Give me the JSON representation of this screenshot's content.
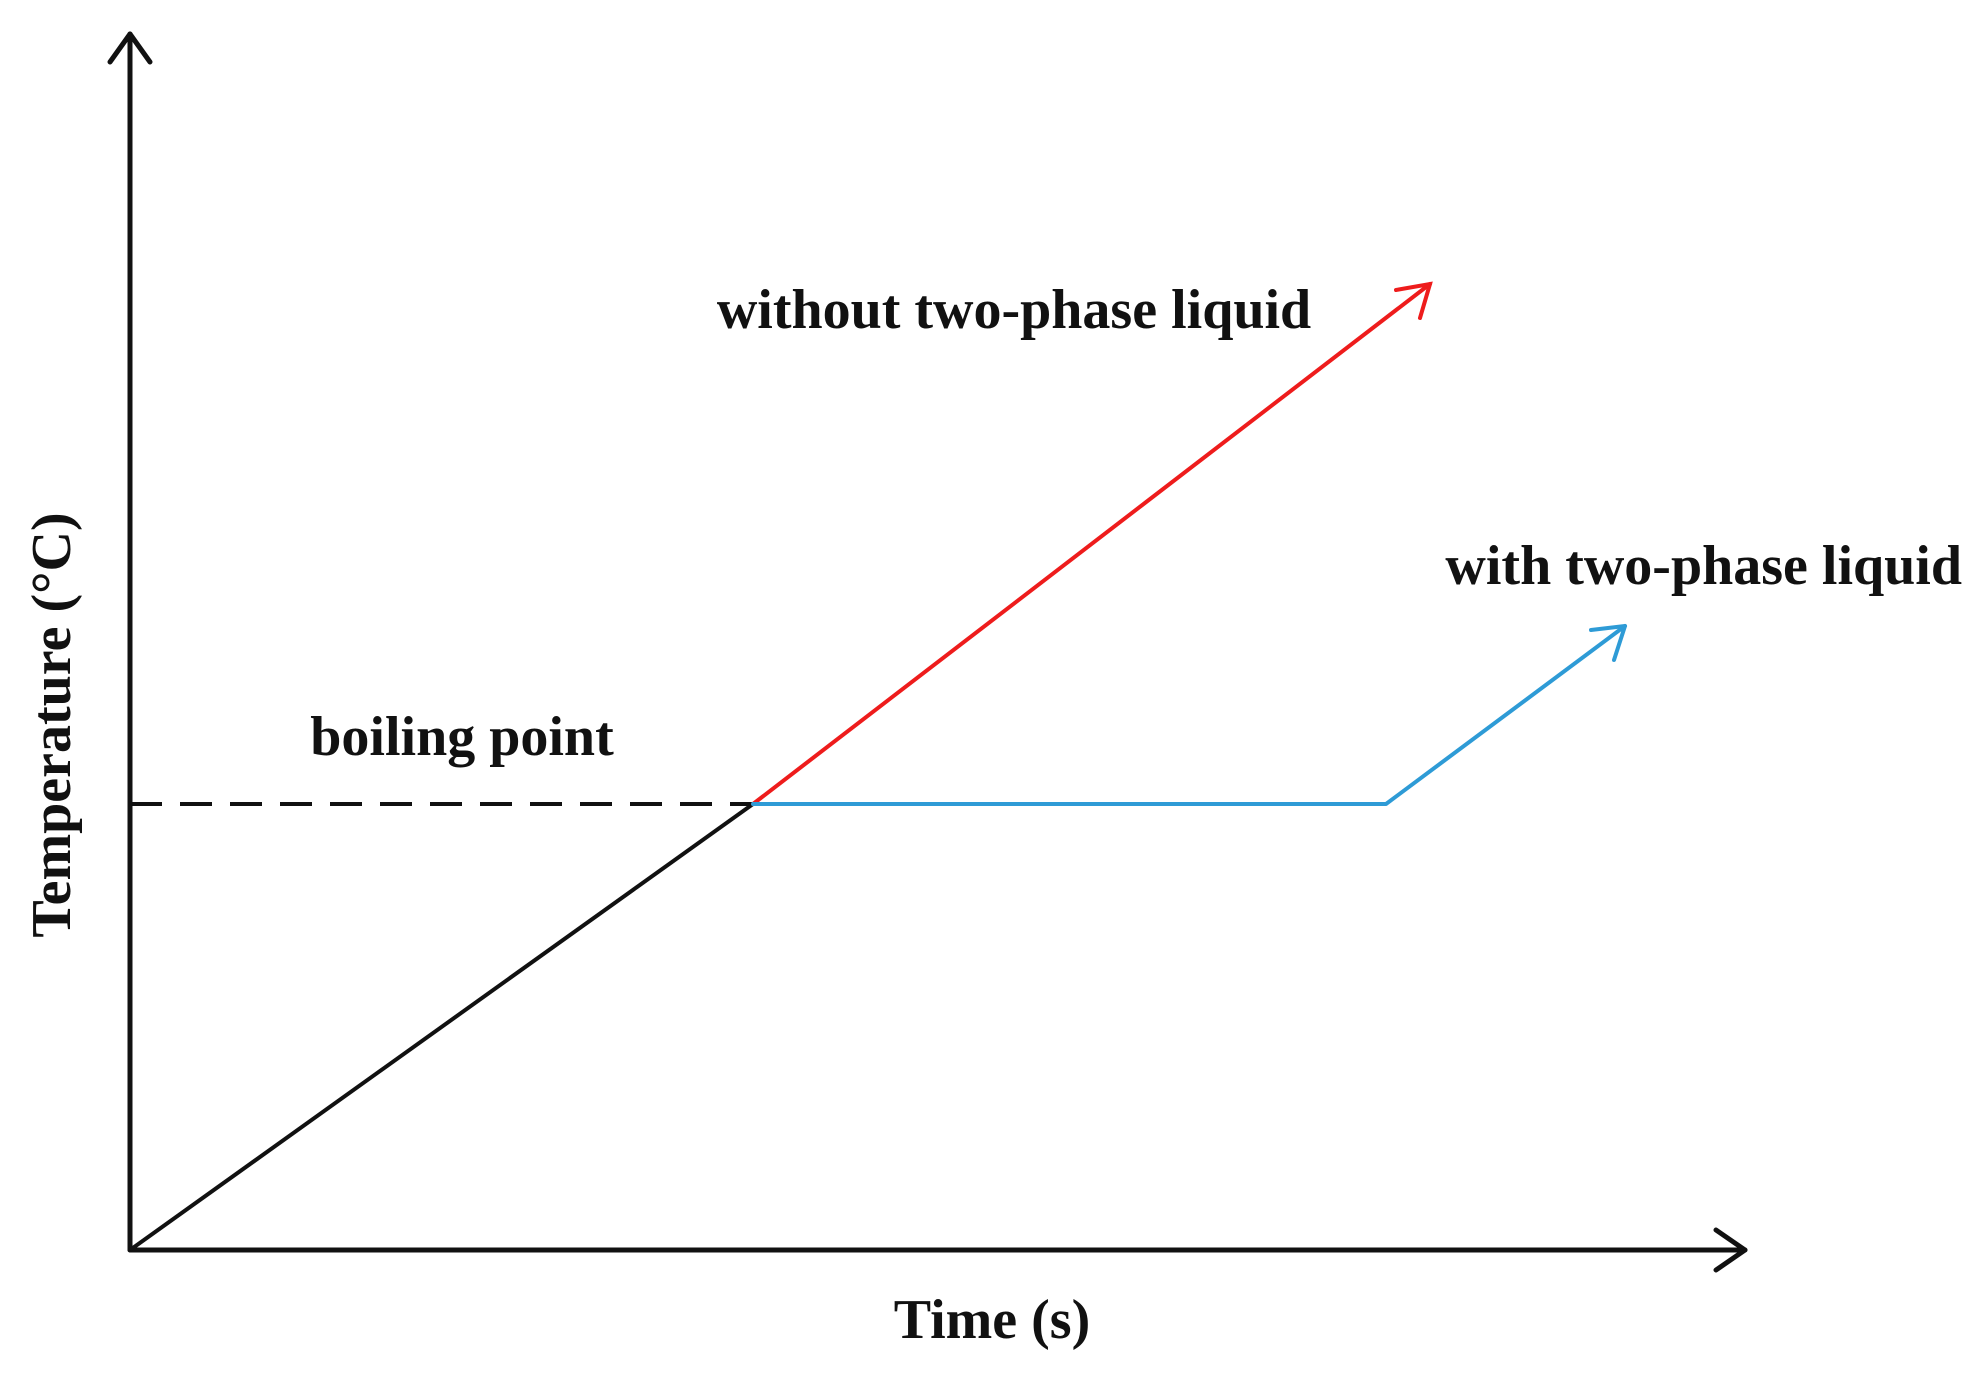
{
  "axes": {
    "x_label": "Time (s)",
    "y_label": "Temperature (°C)"
  },
  "annotations": {
    "boiling_point": "boiling point",
    "without": "without two-phase liquid",
    "with": "with two-phase liquid"
  }
}
